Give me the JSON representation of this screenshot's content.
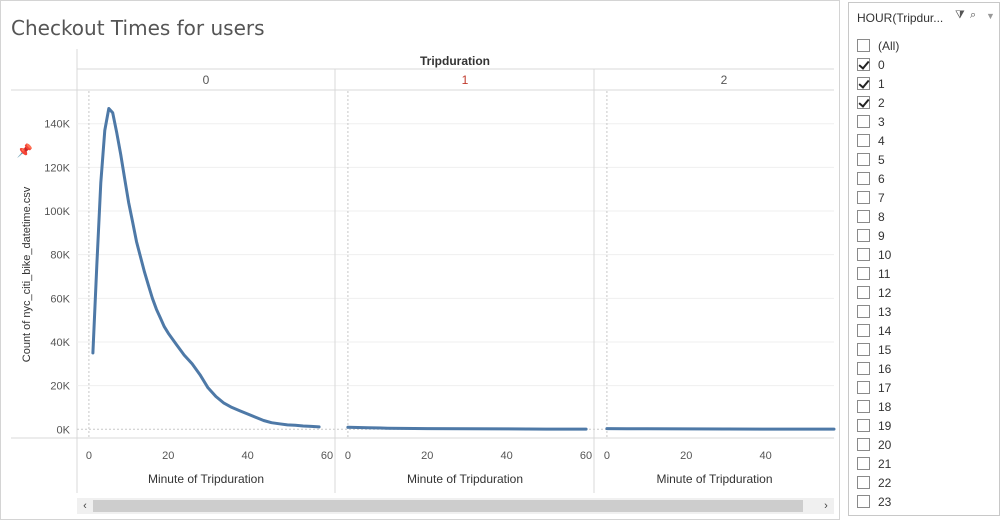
{
  "sheet_title": "Checkout Times for users",
  "filter": {
    "title": "HOUR(Tripdur...",
    "clear_icon": "filter-clear-icon",
    "search_icon": "search-icon",
    "menu_icon": "dropdown-icon",
    "items": [
      {
        "label": "(All)",
        "checked": false
      },
      {
        "label": "0",
        "checked": true
      },
      {
        "label": "1",
        "checked": true
      },
      {
        "label": "2",
        "checked": true
      },
      {
        "label": "3",
        "checked": false
      },
      {
        "label": "4",
        "checked": false
      },
      {
        "label": "5",
        "checked": false
      },
      {
        "label": "6",
        "checked": false
      },
      {
        "label": "7",
        "checked": false
      },
      {
        "label": "8",
        "checked": false
      },
      {
        "label": "9",
        "checked": false
      },
      {
        "label": "10",
        "checked": false
      },
      {
        "label": "11",
        "checked": false
      },
      {
        "label": "12",
        "checked": false
      },
      {
        "label": "13",
        "checked": false
      },
      {
        "label": "14",
        "checked": false
      },
      {
        "label": "15",
        "checked": false
      },
      {
        "label": "16",
        "checked": false
      },
      {
        "label": "17",
        "checked": false
      },
      {
        "label": "18",
        "checked": false
      },
      {
        "label": "19",
        "checked": false
      },
      {
        "label": "20",
        "checked": false
      },
      {
        "label": "21",
        "checked": false
      },
      {
        "label": "22",
        "checked": false
      },
      {
        "label": "23",
        "checked": false
      }
    ]
  },
  "chart_data": {
    "type": "line",
    "column_header_title": "Tripduration",
    "ylabel": "Count of nyc_citi_bike_datetime.csv",
    "xlabel": "Minute of Tripduration",
    "ylim": [
      -4000,
      155000
    ],
    "xlim": [
      -3,
      62
    ],
    "y_ticks": [
      0,
      20000,
      40000,
      60000,
      80000,
      100000,
      120000,
      140000
    ],
    "y_tick_labels": [
      "0K",
      "20K",
      "40K",
      "60K",
      "80K",
      "100K",
      "120K",
      "140K"
    ],
    "x_ticks": [
      0,
      20,
      40,
      60
    ],
    "x_tick_labels": [
      "0",
      "20",
      "40",
      "60"
    ],
    "line_color": "#4e79a7",
    "header_highlight_color": "#c0392b",
    "panels": [
      {
        "header": "0",
        "x": [
          1,
          2,
          3,
          4,
          5,
          6,
          7,
          8,
          9,
          10,
          11,
          12,
          13,
          14,
          15,
          16,
          17,
          18,
          19,
          20,
          22,
          24,
          26,
          28,
          30,
          32,
          34,
          36,
          38,
          40,
          42,
          44,
          46,
          48,
          50,
          52,
          54,
          56,
          58
        ],
        "y": [
          35000,
          75000,
          113000,
          137000,
          147000,
          145000,
          136000,
          126000,
          115000,
          104000,
          95000,
          86000,
          79000,
          72000,
          66000,
          60000,
          55000,
          51000,
          47000,
          44000,
          39000,
          34000,
          30000,
          25000,
          19000,
          15000,
          12000,
          10000,
          8500,
          7000,
          5500,
          4000,
          3000,
          2500,
          2000,
          1800,
          1500,
          1300,
          1100
        ]
      },
      {
        "header": "1",
        "x": [
          0,
          5,
          10,
          20,
          30,
          40,
          50,
          60
        ],
        "y": [
          900,
          700,
          500,
          300,
          200,
          150,
          100,
          80
        ]
      },
      {
        "header": "2",
        "x": [
          0,
          5,
          10,
          20,
          30,
          40,
          50,
          60
        ],
        "y": [
          300,
          250,
          200,
          150,
          120,
          100,
          80,
          60
        ]
      }
    ]
  }
}
